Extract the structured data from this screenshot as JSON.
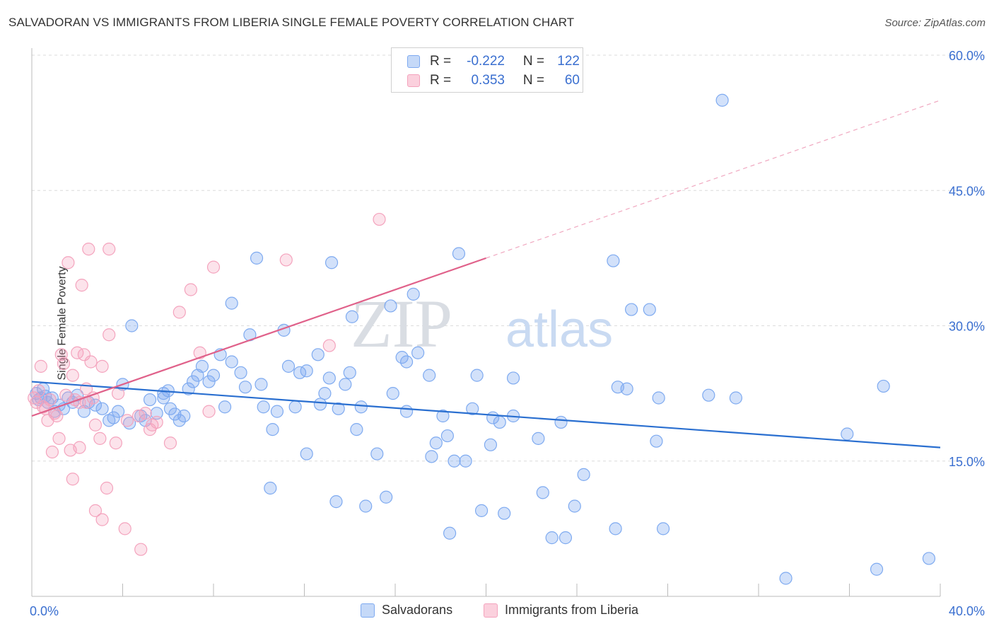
{
  "title": "SALVADORAN VS IMMIGRANTS FROM LIBERIA SINGLE FEMALE POVERTY CORRELATION CHART",
  "source": "Source: ZipAtlas.com",
  "watermark": {
    "zip": "ZIP",
    "atlas": "atlas"
  },
  "legend": {
    "rows": [
      {
        "r_label": "R =",
        "r_value": "-0.222",
        "n_label": "N =",
        "n_value": "122",
        "color": "#7eaaf0"
      },
      {
        "r_label": "R =",
        "r_value": "0.353",
        "n_label": "N =",
        "n_value": "60",
        "color": "#f4a3bd"
      }
    ]
  },
  "bottom_legend": [
    {
      "label": "Salvadorans",
      "color": "#7eaaf0"
    },
    {
      "label": "Immigrants from Liberia",
      "color": "#f4a3bd"
    }
  ],
  "chart_data": {
    "type": "scatter",
    "title": "SALVADORAN VS IMMIGRANTS FROM LIBERIA SINGLE FEMALE POVERTY CORRELATION CHART",
    "xlabel": "",
    "ylabel": "Single Female Poverty",
    "xlim": [
      0,
      40
    ],
    "ylim": [
      0,
      60
    ],
    "x_tick_labels": [
      "0.0%",
      "40.0%"
    ],
    "y_tick_labels": [
      "15.0%",
      "30.0%",
      "45.0%",
      "60.0%"
    ],
    "y_ticks": [
      15,
      30,
      45,
      60
    ],
    "series": [
      {
        "name": "Salvadorans",
        "color": "#7eaaf0",
        "line_color": "#2a6fd0",
        "trend": {
          "x0": 0,
          "y0": 23.8,
          "x1": 40,
          "y1": 16.5
        },
        "points": [
          [
            0.2,
            22.5
          ],
          [
            0.3,
            21.8
          ],
          [
            0.4,
            22.0
          ],
          [
            0.5,
            23.0
          ],
          [
            0.6,
            22.2
          ],
          [
            0.7,
            21.5
          ],
          [
            0.9,
            22.0
          ],
          [
            1.0,
            20.5
          ],
          [
            1.2,
            21.2
          ],
          [
            1.4,
            20.8
          ],
          [
            1.6,
            22.0
          ],
          [
            1.8,
            21.5
          ],
          [
            2.0,
            22.3
          ],
          [
            2.3,
            20.5
          ],
          [
            2.5,
            21.5
          ],
          [
            2.8,
            21.2
          ],
          [
            3.1,
            20.8
          ],
          [
            3.4,
            19.5
          ],
          [
            3.6,
            19.8
          ],
          [
            3.8,
            20.5
          ],
          [
            4.0,
            23.5
          ],
          [
            4.3,
            19.2
          ],
          [
            4.4,
            30.0
          ],
          [
            4.8,
            20.0
          ],
          [
            5.0,
            19.5
          ],
          [
            5.2,
            21.8
          ],
          [
            5.5,
            20.3
          ],
          [
            5.8,
            22.0
          ],
          [
            5.8,
            22.5
          ],
          [
            6.0,
            22.8
          ],
          [
            6.1,
            20.8
          ],
          [
            6.3,
            20.2
          ],
          [
            6.5,
            19.5
          ],
          [
            6.7,
            20.0
          ],
          [
            6.9,
            23.0
          ],
          [
            7.1,
            23.8
          ],
          [
            7.3,
            24.5
          ],
          [
            7.5,
            25.5
          ],
          [
            7.8,
            23.8
          ],
          [
            8.0,
            24.5
          ],
          [
            8.3,
            26.8
          ],
          [
            8.5,
            21.0
          ],
          [
            8.8,
            26.0
          ],
          [
            8.8,
            32.5
          ],
          [
            9.2,
            24.8
          ],
          [
            9.4,
            23.2
          ],
          [
            9.6,
            29.0
          ],
          [
            9.9,
            37.5
          ],
          [
            10.1,
            23.5
          ],
          [
            10.2,
            21.0
          ],
          [
            10.5,
            12.0
          ],
          [
            10.6,
            18.5
          ],
          [
            10.8,
            20.5
          ],
          [
            11.1,
            29.5
          ],
          [
            11.3,
            25.5
          ],
          [
            11.6,
            21.0
          ],
          [
            11.8,
            24.8
          ],
          [
            12.1,
            25.0
          ],
          [
            12.1,
            15.8
          ],
          [
            12.6,
            26.8
          ],
          [
            12.7,
            21.3
          ],
          [
            12.9,
            22.5
          ],
          [
            13.1,
            24.2
          ],
          [
            13.2,
            37.0
          ],
          [
            13.4,
            10.5
          ],
          [
            13.5,
            20.8
          ],
          [
            13.8,
            23.5
          ],
          [
            14.0,
            24.8
          ],
          [
            14.1,
            31.0
          ],
          [
            14.3,
            18.5
          ],
          [
            14.5,
            21.0
          ],
          [
            14.7,
            10.0
          ],
          [
            15.2,
            15.8
          ],
          [
            15.6,
            11.0
          ],
          [
            15.8,
            32.2
          ],
          [
            15.9,
            22.5
          ],
          [
            16.3,
            26.5
          ],
          [
            16.5,
            20.5
          ],
          [
            16.5,
            26.0
          ],
          [
            16.8,
            33.5
          ],
          [
            17.0,
            27.0
          ],
          [
            17.5,
            24.5
          ],
          [
            17.6,
            15.5
          ],
          [
            17.8,
            17.0
          ],
          [
            18.1,
            20.0
          ],
          [
            18.3,
            17.8
          ],
          [
            18.4,
            7.0
          ],
          [
            18.6,
            15.0
          ],
          [
            18.8,
            38.0
          ],
          [
            19.1,
            15.0
          ],
          [
            19.4,
            20.8
          ],
          [
            19.6,
            24.5
          ],
          [
            19.8,
            9.5
          ],
          [
            20.2,
            16.8
          ],
          [
            20.3,
            19.8
          ],
          [
            20.6,
            19.3
          ],
          [
            20.8,
            9.2
          ],
          [
            21.2,
            20.0
          ],
          [
            21.2,
            24.2
          ],
          [
            22.3,
            17.5
          ],
          [
            22.5,
            11.5
          ],
          [
            22.9,
            6.5
          ],
          [
            23.3,
            19.3
          ],
          [
            23.5,
            6.5
          ],
          [
            23.9,
            10.0
          ],
          [
            24.3,
            13.5
          ],
          [
            25.6,
            37.2
          ],
          [
            25.7,
            7.5
          ],
          [
            25.8,
            23.2
          ],
          [
            26.2,
            23.0
          ],
          [
            26.4,
            31.8
          ],
          [
            27.2,
            31.8
          ],
          [
            27.5,
            17.2
          ],
          [
            27.6,
            22.0
          ],
          [
            27.8,
            7.5
          ],
          [
            29.8,
            22.3
          ],
          [
            30.4,
            55.0
          ],
          [
            31.0,
            22.0
          ],
          [
            33.2,
            2.0
          ],
          [
            35.9,
            18.0
          ],
          [
            37.2,
            3.0
          ],
          [
            37.5,
            23.3
          ],
          [
            39.5,
            4.2
          ]
        ]
      },
      {
        "name": "Immigrants from Liberia",
        "color": "#f4a3bd",
        "line_color": "#e0618a",
        "trend": {
          "x0": 0,
          "y0": 20.0,
          "x1": 20,
          "y1": 37.5
        },
        "trend_dashed_to": {
          "x": 40,
          "y": 55.0
        },
        "points": [
          [
            0.1,
            22.0
          ],
          [
            0.2,
            21.5
          ],
          [
            0.3,
            22.8
          ],
          [
            0.4,
            25.5
          ],
          [
            0.5,
            21.0
          ],
          [
            0.6,
            20.8
          ],
          [
            0.7,
            19.5
          ],
          [
            0.8,
            21.8
          ],
          [
            0.9,
            16.0
          ],
          [
            1.0,
            20.3
          ],
          [
            1.1,
            20.0
          ],
          [
            1.2,
            17.5
          ],
          [
            1.3,
            26.8
          ],
          [
            1.4,
            25.8
          ],
          [
            1.5,
            22.3
          ],
          [
            1.6,
            37.0
          ],
          [
            1.7,
            16.2
          ],
          [
            1.8,
            24.5
          ],
          [
            1.8,
            13.0
          ],
          [
            1.9,
            21.8
          ],
          [
            2.0,
            27.0
          ],
          [
            2.1,
            16.5
          ],
          [
            2.1,
            21.5
          ],
          [
            2.2,
            34.5
          ],
          [
            2.3,
            26.8
          ],
          [
            2.4,
            21.5
          ],
          [
            2.4,
            23.0
          ],
          [
            2.5,
            38.5
          ],
          [
            2.6,
            26.0
          ],
          [
            2.7,
            22.0
          ],
          [
            2.8,
            9.5
          ],
          [
            2.8,
            19.0
          ],
          [
            3.0,
            17.5
          ],
          [
            3.1,
            8.5
          ],
          [
            3.1,
            25.5
          ],
          [
            3.3,
            12.0
          ],
          [
            3.4,
            38.5
          ],
          [
            3.4,
            29.0
          ],
          [
            3.7,
            17.0
          ],
          [
            3.8,
            22.5
          ],
          [
            4.1,
            7.5
          ],
          [
            4.2,
            19.5
          ],
          [
            4.7,
            20.0
          ],
          [
            4.8,
            5.2
          ],
          [
            5.0,
            20.3
          ],
          [
            5.2,
            18.5
          ],
          [
            5.3,
            19.0
          ],
          [
            5.5,
            19.3
          ],
          [
            6.1,
            17.0
          ],
          [
            6.5,
            31.5
          ],
          [
            7.0,
            34.0
          ],
          [
            7.4,
            27.0
          ],
          [
            7.8,
            20.5
          ],
          [
            8.0,
            36.5
          ],
          [
            11.2,
            37.3
          ],
          [
            13.1,
            27.8
          ],
          [
            15.3,
            41.8
          ]
        ]
      }
    ]
  }
}
